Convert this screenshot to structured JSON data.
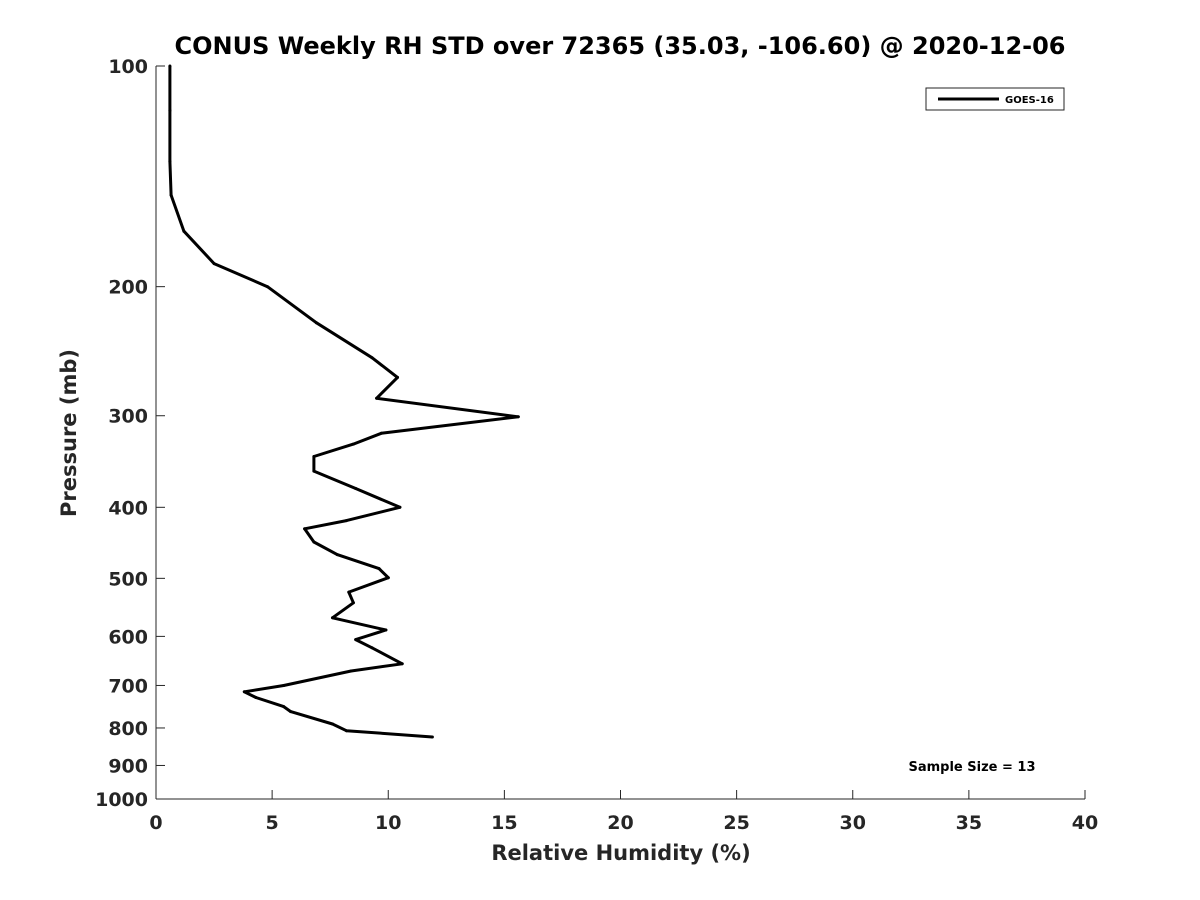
{
  "chart_data": {
    "type": "line",
    "title": "CONUS Weekly RH STD over 72365 (35.03, -106.60) @ 2020-12-06",
    "xlabel": "Relative Humidity (%)",
    "ylabel": "Pressure (mb)",
    "xlim": [
      0,
      40
    ],
    "ylim": [
      100,
      1000
    ],
    "yscale": "log",
    "y_reversed": true,
    "xticks": [
      0,
      5,
      10,
      15,
      20,
      25,
      30,
      35,
      40
    ],
    "yticks": [
      100,
      200,
      300,
      400,
      500,
      600,
      700,
      800,
      900,
      1000
    ],
    "grid": false,
    "legend_position": "top-right",
    "annotation": "Sample Size = 13",
    "series": [
      {
        "name": "GOES-16",
        "color": "#000000",
        "points": [
          [
            0.6,
            100
          ],
          [
            0.6,
            115
          ],
          [
            0.6,
            135
          ],
          [
            0.65,
            150
          ],
          [
            1.2,
            168
          ],
          [
            2.5,
            186
          ],
          [
            4.8,
            200
          ],
          [
            6.9,
            224
          ],
          [
            9.3,
            250
          ],
          [
            10.4,
            266
          ],
          [
            9.5,
            284
          ],
          [
            15.6,
            301
          ],
          [
            9.7,
            317
          ],
          [
            8.5,
            328
          ],
          [
            6.8,
            341
          ],
          [
            6.8,
            357
          ],
          [
            8.6,
            377
          ],
          [
            10.5,
            400
          ],
          [
            8.2,
            417
          ],
          [
            6.4,
            428
          ],
          [
            6.8,
            446
          ],
          [
            7.8,
            464
          ],
          [
            9.6,
            485
          ],
          [
            10.0,
            499
          ],
          [
            8.3,
            522
          ],
          [
            8.5,
            540
          ],
          [
            7.6,
            566
          ],
          [
            9.9,
            588
          ],
          [
            8.6,
            606
          ],
          [
            9.3,
            622
          ],
          [
            10.6,
            654
          ],
          [
            8.4,
            669
          ],
          [
            5.5,
            700
          ],
          [
            3.8,
            714
          ],
          [
            4.3,
            727
          ],
          [
            5.5,
            748
          ],
          [
            5.8,
            760
          ],
          [
            7.6,
            790
          ],
          [
            8.2,
            807
          ],
          [
            11.9,
            823
          ]
        ]
      }
    ]
  }
}
